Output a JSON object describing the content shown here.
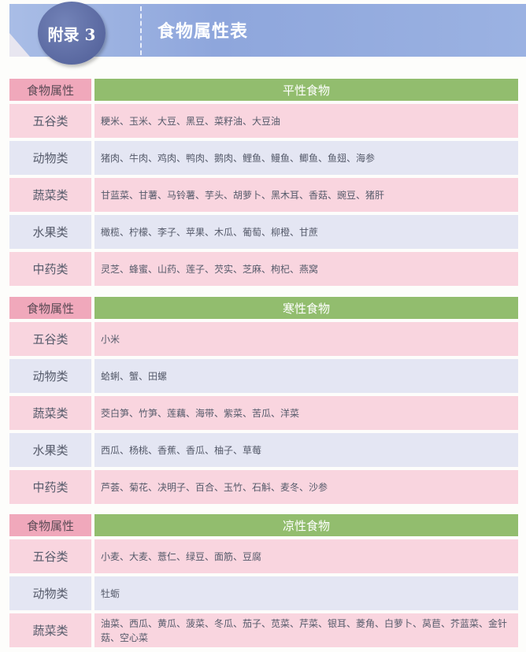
{
  "header": {
    "badge": "附录 3",
    "title": "食物属性表"
  },
  "tables": [
    {
      "col_label": "食物属性",
      "title": "平性食物",
      "rows": [
        {
          "category": "五谷类",
          "items": "粳米、玉米、大豆、黑豆、菜籽油、大豆油"
        },
        {
          "category": "动物类",
          "items": "猪肉、牛肉、鸡肉、鸭肉、鹅肉、鲤鱼、鳗鱼、鲫鱼、鱼翅、海参"
        },
        {
          "category": "蔬菜类",
          "items": "甘蓝菜、甘薯、马铃薯、芋头、胡萝卜、黑木耳、香菇、豌豆、猪肝"
        },
        {
          "category": "水果类",
          "items": "橄榄、柠檬、李子、苹果、木瓜、葡萄、柳橙、甘蔗"
        },
        {
          "category": "中药类",
          "items": "灵芝、蜂蜜、山药、莲子、芡实、芝麻、枸杞、燕窝"
        }
      ]
    },
    {
      "col_label": "食物属性",
      "title": "寒性食物",
      "rows": [
        {
          "category": "五谷类",
          "items": "小米"
        },
        {
          "category": "动物类",
          "items": "蛤蜊、蟹、田螺"
        },
        {
          "category": "蔬菜类",
          "items": "茭白笋、竹笋、莲藕、海带、紫菜、苦瓜、洋菜"
        },
        {
          "category": "水果类",
          "items": "西瓜、杨桃、香蕉、香瓜、柚子、草莓"
        },
        {
          "category": "中药类",
          "items": "芦荟、菊花、决明子、百合、玉竹、石斛、麦冬、沙参"
        }
      ]
    },
    {
      "col_label": "食物属性",
      "title": "凉性食物",
      "rows": [
        {
          "category": "五谷类",
          "items": "小麦、大麦、薏仁、绿豆、面筋、豆腐"
        },
        {
          "category": "动物类",
          "items": "牡蛎"
        },
        {
          "category": "蔬菜类",
          "items": "油菜、西瓜、黄瓜、菠菜、冬瓜、茄子、苋菜、芹菜、银耳、菱角、白萝卜、莴苣、芥蓝菜、金针菇、空心菜"
        }
      ]
    }
  ]
}
